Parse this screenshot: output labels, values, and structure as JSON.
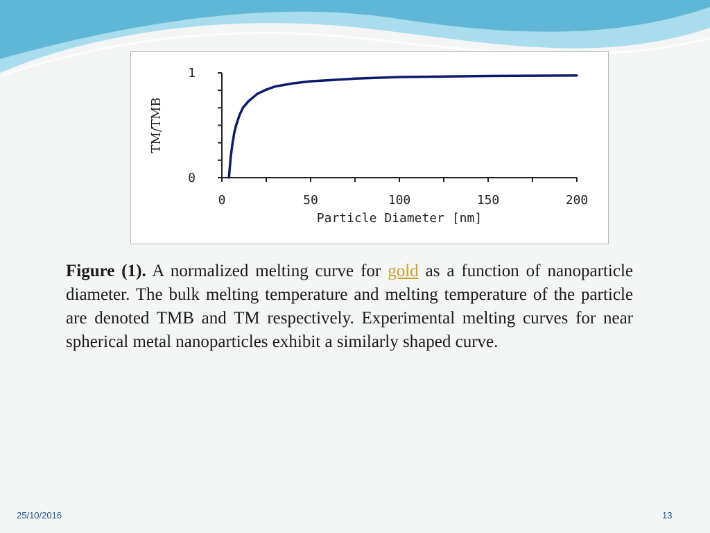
{
  "colors": {
    "wave_dark": "#5fb6d6",
    "wave_light": "#a9dcec",
    "curve": "#0d1a6b",
    "axis": "#222222",
    "link": "#c9a227",
    "footer": "#1d5a8c"
  },
  "chart_data": {
    "type": "line",
    "xlabel": "Particle Diameter [nm]",
    "ylabel": "TM/TMB",
    "xlim": [
      0,
      200
    ],
    "ylim": [
      0,
      1
    ],
    "x_ticks": [
      "0",
      "50",
      "100",
      "150",
      "200"
    ],
    "y_ticks": [
      "0",
      "1"
    ],
    "grid": false,
    "series": [
      {
        "x": [
          4,
          5,
          6,
          7,
          8,
          10,
          12,
          15,
          20,
          25,
          30,
          40,
          50,
          60,
          75,
          100,
          125,
          150,
          175,
          200
        ],
        "y": [
          0.0,
          0.2,
          0.33,
          0.43,
          0.5,
          0.6,
          0.67,
          0.73,
          0.8,
          0.84,
          0.87,
          0.9,
          0.92,
          0.93,
          0.945,
          0.96,
          0.965,
          0.97,
          0.973,
          0.975
        ]
      }
    ]
  },
  "caption": {
    "label": "Figure (1).",
    "text_before": " A normalized melting curve for ",
    "link": "gold",
    "text_after": " as a function of nanoparticle diameter. The bulk melting temperature and melting temperature of the particle are denoted TMB and TM respectively. Experimental melting curves for near spherical metal nanoparticles exhibit a similarly shaped curve."
  },
  "footer": {
    "date": "25/10/2016",
    "page": "13"
  }
}
